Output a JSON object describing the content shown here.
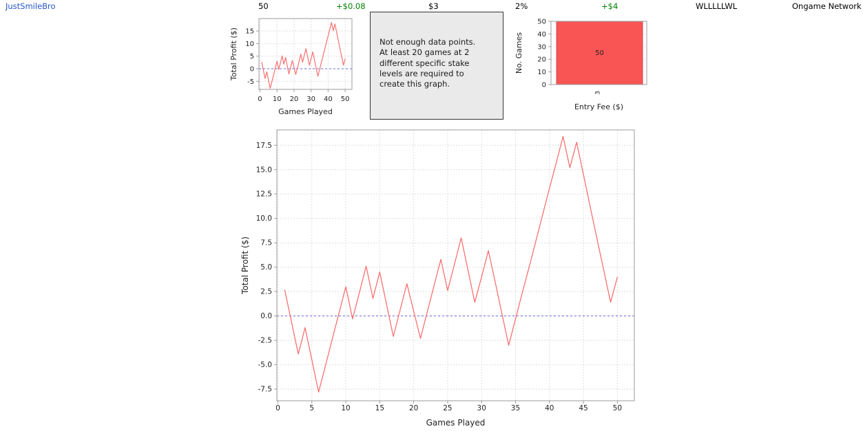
{
  "header": {
    "player_name": "JustSmileBro",
    "games_count": "50",
    "average_profit": "+$0.08",
    "average_stake": "$3",
    "average_roi": "2%",
    "total_profit": "+$4",
    "form": "WLLLLLWL",
    "network": "Ongame Network"
  },
  "message_box": {
    "lines": [
      "Not enough data points.",
      "At least 20 games at 2",
      "different specific stake",
      "levels are required to",
      "create this graph."
    ]
  },
  "colors": {
    "link_blue": "#2356c7",
    "profit_green": "#008000",
    "line_red": "#f97070",
    "bar_red": "#f95555",
    "bar_edge_red": "#d84848",
    "bar_label_dark": "#3a1c1c",
    "zero_line_blue": "#6a6ad8",
    "gridline_gray": "#dedede",
    "plot_border_gray": "#9b9b9b",
    "tick_text": "#1f1f1f",
    "message_box_bg": "#eaeaea"
  },
  "chart_data": [
    {
      "id": "mini_total_profit",
      "type": "line",
      "title": "",
      "xlabel": "Games Played",
      "ylabel": "Total Profit ($)",
      "x": [
        1,
        2,
        3,
        4,
        5,
        6,
        7,
        8,
        9,
        10,
        11,
        12,
        13,
        14,
        15,
        16,
        17,
        18,
        19,
        20,
        21,
        22,
        23,
        24,
        25,
        26,
        27,
        28,
        29,
        30,
        31,
        32,
        33,
        34,
        35,
        36,
        37,
        38,
        39,
        40,
        41,
        42,
        43,
        44,
        45,
        46,
        47,
        48,
        49,
        50
      ],
      "y": [
        2.7,
        -0.6,
        -3.9,
        -1.2,
        -4.5,
        -7.8,
        -5.1,
        -2.4,
        0.3,
        3.0,
        -0.3,
        2.4,
        5.1,
        1.8,
        4.5,
        1.2,
        -2.1,
        0.6,
        3.3,
        0.5,
        -2.3,
        0.4,
        3.1,
        5.8,
        2.6,
        5.3,
        8.0,
        4.7,
        1.4,
        4.0,
        6.7,
        3.5,
        0.2,
        -3.0,
        -0.3,
        2.4,
        5.0,
        7.7,
        10.4,
        13.1,
        15.7,
        18.4,
        15.2,
        17.8,
        14.5,
        11.2,
        7.9,
        4.7,
        1.4,
        4.0
      ],
      "xticks": [
        0,
        10,
        20,
        30,
        40,
        50
      ],
      "xtick_labels": [
        "0",
        "10",
        "20",
        "30",
        "40",
        "50"
      ],
      "yticks": [
        -5,
        0,
        5,
        10,
        15
      ],
      "ytick_labels": [
        "-5",
        "0",
        "5",
        "10",
        "15"
      ],
      "xlim": [
        -0.6,
        54.0
      ],
      "ylim": [
        -8.2,
        19.95
      ],
      "zero_line": 0,
      "grid": true,
      "legend": "none"
    },
    {
      "id": "games_by_entry_fee",
      "type": "bar",
      "title": "",
      "xlabel": "Entry Fee ($)",
      "ylabel": "No. Games",
      "categories": [
        "3"
      ],
      "values": [
        50
      ],
      "bar_labels": [
        "50"
      ],
      "yticks": [
        0,
        10,
        20,
        30,
        40,
        50
      ],
      "ytick_labels": [
        "0",
        "10",
        "20",
        "30",
        "40",
        "50"
      ],
      "ylim": [
        0,
        50
      ],
      "grid": true,
      "legend": "none"
    },
    {
      "id": "main_total_profit",
      "type": "line",
      "title": "",
      "xlabel": "Games Played",
      "ylabel": "Total Profit ($)",
      "x": [
        1,
        2,
        3,
        4,
        5,
        6,
        7,
        8,
        9,
        10,
        11,
        12,
        13,
        14,
        15,
        16,
        17,
        18,
        19,
        20,
        21,
        22,
        23,
        24,
        25,
        26,
        27,
        28,
        29,
        30,
        31,
        32,
        33,
        34,
        35,
        36,
        37,
        38,
        39,
        40,
        41,
        42,
        43,
        44,
        45,
        46,
        47,
        48,
        49,
        50
      ],
      "y": [
        2.7,
        -0.6,
        -3.9,
        -1.2,
        -4.5,
        -7.8,
        -5.1,
        -2.4,
        0.3,
        3.0,
        -0.3,
        2.4,
        5.1,
        1.8,
        4.5,
        1.2,
        -2.1,
        0.6,
        3.3,
        0.5,
        -2.3,
        0.4,
        3.1,
        5.8,
        2.6,
        5.3,
        8.0,
        4.7,
        1.4,
        4.0,
        6.7,
        3.5,
        0.2,
        -3.0,
        -0.3,
        2.4,
        5.0,
        7.7,
        10.4,
        13.1,
        15.7,
        18.4,
        15.2,
        17.8,
        14.5,
        11.2,
        7.9,
        4.7,
        1.4,
        4.0
      ],
      "xticks": [
        0,
        5,
        10,
        15,
        20,
        25,
        30,
        35,
        40,
        45,
        50
      ],
      "xtick_labels": [
        "0",
        "5",
        "10",
        "15",
        "20",
        "25",
        "30",
        "35",
        "40",
        "45",
        "50"
      ],
      "yticks": [
        -7.5,
        -5,
        -2.5,
        0,
        2.5,
        5,
        7.5,
        10,
        12.5,
        15,
        17.5
      ],
      "ytick_labels": [
        "-7.5",
        "-5.0",
        "-2.5",
        "0.0",
        "2.5",
        "5.0",
        "7.5",
        "10.0",
        "12.5",
        "15.0",
        "17.5"
      ],
      "xlim": [
        -0.15,
        52.5
      ],
      "ylim": [
        -8.69,
        19.07
      ],
      "zero_line": 0,
      "grid": true,
      "legend": "none"
    }
  ]
}
